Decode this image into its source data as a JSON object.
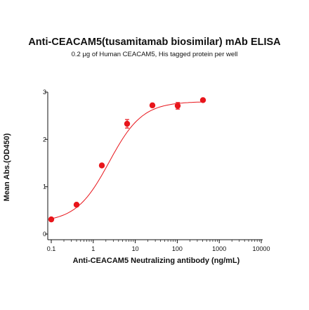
{
  "chart_data": {
    "type": "scatter",
    "title": "Anti-CEACAM5(tusamitamab biosimilar) mAb ELISA",
    "subtitle": "0.2 μg of Human CEACAM5, His tagged protein per well",
    "xlabel": "Anti-CEACAM5 Neutralizing antibody (ng/mL)",
    "ylabel": "Mean Abs.(OD450)",
    "x_scale": "log",
    "xlim": [
      0.1,
      10000
    ],
    "ylim": [
      0,
      3
    ],
    "x_ticks": [
      "0.1",
      "1",
      "10",
      "100",
      "1000",
      "10000"
    ],
    "y_ticks": [
      "0",
      "1",
      "2",
      "3"
    ],
    "grid": false,
    "color": "#e8151b",
    "series": [
      {
        "x": [
          0.1,
          0.4,
          1.6,
          6.4,
          25.6,
          102.4,
          409.6
        ],
        "y": [
          0.31,
          0.62,
          1.45,
          2.33,
          2.72,
          2.71,
          2.83
        ],
        "err": [
          0.02,
          0.02,
          0.03,
          0.09,
          0.04,
          0.07,
          0.02
        ]
      }
    ]
  }
}
